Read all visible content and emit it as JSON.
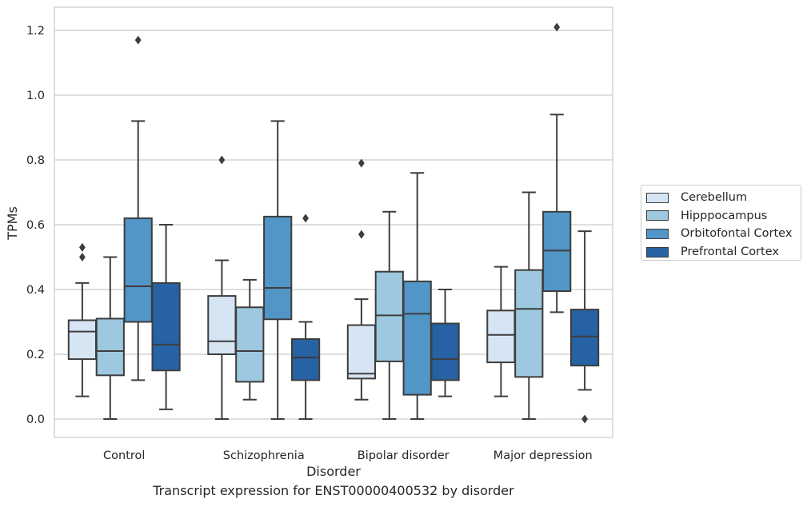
{
  "chart_data": {
    "type": "box",
    "title": "",
    "caption": "Transcript expression for ENST00000400532 by disorder",
    "xlabel": "Disorder",
    "ylabel": "TPMs",
    "ylim": [
      -0.06,
      1.27
    ],
    "yticks": [
      0.0,
      0.2,
      0.4,
      0.6,
      0.8,
      1.0,
      1.2
    ],
    "ytick_labels": [
      "0.0",
      "0.2",
      "0.4",
      "0.6",
      "0.8",
      "1.0",
      "1.2"
    ],
    "grid": "horizontal",
    "legend_position": "right",
    "categories": [
      "Control",
      "Schizophrenia",
      "Bipolar disorder",
      "Major depression"
    ],
    "series": [
      {
        "name": "Cerebellum",
        "color": "#d6e5f4",
        "boxes": [
          {
            "min": 0.07,
            "q1": 0.185,
            "median": 0.27,
            "q3": 0.305,
            "max": 0.42,
            "outliers": [
              0.5,
              0.53
            ]
          },
          {
            "min": 0.0,
            "q1": 0.2,
            "median": 0.24,
            "q3": 0.38,
            "max": 0.49,
            "outliers": [
              0.8
            ]
          },
          {
            "min": 0.06,
            "q1": 0.125,
            "median": 0.14,
            "q3": 0.29,
            "max": 0.37,
            "outliers": [
              0.57,
              0.79
            ]
          },
          {
            "min": 0.07,
            "q1": 0.175,
            "median": 0.26,
            "q3": 0.335,
            "max": 0.47,
            "outliers": []
          }
        ]
      },
      {
        "name": "Hipppocampus",
        "color": "#9dc8df",
        "boxes": [
          {
            "min": 0.0,
            "q1": 0.135,
            "median": 0.21,
            "q3": 0.31,
            "max": 0.5,
            "outliers": []
          },
          {
            "min": 0.06,
            "q1": 0.115,
            "median": 0.21,
            "q3": 0.345,
            "max": 0.43,
            "outliers": []
          },
          {
            "min": 0.0,
            "q1": 0.178,
            "median": 0.32,
            "q3": 0.455,
            "max": 0.64,
            "outliers": []
          },
          {
            "min": 0.0,
            "q1": 0.13,
            "median": 0.34,
            "q3": 0.46,
            "max": 0.7,
            "outliers": []
          }
        ]
      },
      {
        "name": "Orbitofontal Cortex",
        "color": "#5295c7",
        "boxes": [
          {
            "min": 0.12,
            "q1": 0.3,
            "median": 0.41,
            "q3": 0.62,
            "max": 0.92,
            "outliers": [
              1.17
            ]
          },
          {
            "min": 0.0,
            "q1": 0.308,
            "median": 0.405,
            "q3": 0.625,
            "max": 0.92,
            "outliers": []
          },
          {
            "min": 0.0,
            "q1": 0.075,
            "median": 0.325,
            "q3": 0.425,
            "max": 0.76,
            "outliers": []
          },
          {
            "min": 0.33,
            "q1": 0.395,
            "median": 0.52,
            "q3": 0.64,
            "max": 0.94,
            "outliers": [
              1.21
            ]
          }
        ]
      },
      {
        "name": "Prefrontal Cortex",
        "color": "#2662a4",
        "boxes": [
          {
            "min": 0.03,
            "q1": 0.15,
            "median": 0.23,
            "q3": 0.42,
            "max": 0.6,
            "outliers": []
          },
          {
            "min": 0.0,
            "q1": 0.12,
            "median": 0.19,
            "q3": 0.247,
            "max": 0.3,
            "outliers": [
              0.62
            ]
          },
          {
            "min": 0.07,
            "q1": 0.12,
            "median": 0.185,
            "q3": 0.295,
            "max": 0.4,
            "outliers": []
          },
          {
            "min": 0.09,
            "q1": 0.165,
            "median": 0.255,
            "q3": 0.338,
            "max": 0.58,
            "outliers": [
              0.0
            ]
          }
        ]
      }
    ]
  }
}
